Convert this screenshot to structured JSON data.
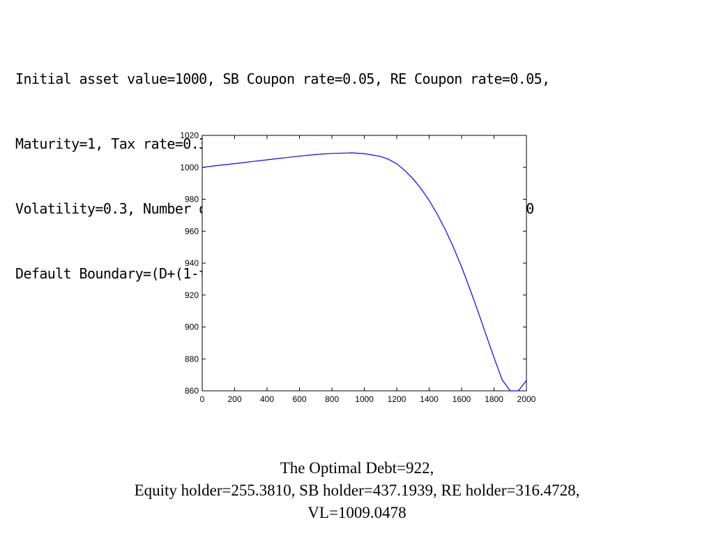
{
  "parameters": {
    "lines": [
      "Initial asset value=1000, SB Coupon rate=0.05, RE Coupon rate=0.05,",
      "Maturity=1, Tax rate=0.35,破產成本比例(α)=0.4, Risk free rate=0.1,",
      "Volatility=0.3, Number of initial Stock=100,SB/D=0.5, Debt=0~2000",
      "Default Boundary=(D+(1-tau)*C*D*T)*0.2"
    ]
  },
  "chart_data": {
    "type": "line",
    "title": "",
    "xlabel": "",
    "ylabel": "",
    "xlim": [
      0,
      2000
    ],
    "ylim": [
      860,
      1020
    ],
    "x_ticks": [
      0,
      200,
      400,
      600,
      800,
      1000,
      1200,
      1400,
      1600,
      1800,
      2000
    ],
    "y_ticks": [
      860,
      880,
      900,
      920,
      940,
      960,
      980,
      1000,
      1020
    ],
    "grid": false,
    "line_color": "#0000ff",
    "series": [
      {
        "x": [
          0,
          100,
          200,
          300,
          400,
          500,
          600,
          700,
          800,
          900,
          922,
          1000,
          1100,
          1150,
          1200,
          1250,
          1300,
          1350,
          1400,
          1450,
          1500,
          1550,
          1600,
          1650,
          1700,
          1750,
          1800,
          1850,
          1900,
          1950,
          2000
        ],
        "values": [
          1000,
          1001.2,
          1002.3,
          1003.5,
          1004.7,
          1005.9,
          1007.0,
          1008.0,
          1008.7,
          1009.0,
          1009.05,
          1008.6,
          1006.8,
          1005.0,
          1002.2,
          998.0,
          992.8,
          986.6,
          979.2,
          970.6,
          960.8,
          949.8,
          937.6,
          924.2,
          910.0,
          895.3,
          880.8,
          867.0,
          853.5,
          840.2,
          866.5
        ]
      }
    ]
  },
  "results": {
    "line1": "The Optimal Debt=922,",
    "line2": "Equity holder=255.3810, SB holder=437.1939, RE holder=316.4728,",
    "line3": "VL=1009.0478"
  }
}
